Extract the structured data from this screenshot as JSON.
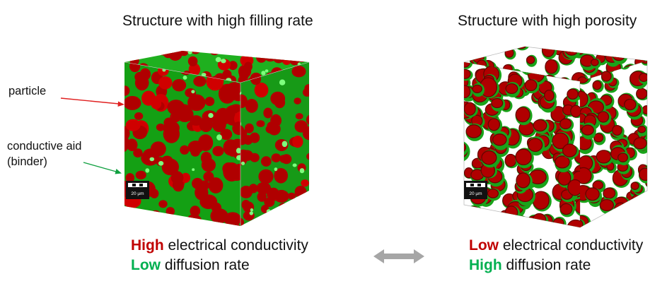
{
  "left_panel": {
    "title": "Structure with high filling rate",
    "scale_bar": "20 µm",
    "labels": {
      "particle": "particle",
      "conductive_aid": [
        "conductive aid",
        "(binder)"
      ]
    },
    "properties": [
      {
        "level": "High",
        "text": " electrical conductivity",
        "level_color": "#c00000"
      },
      {
        "level": "Low",
        "text": " diffusion rate",
        "level_color": "#00b050"
      }
    ]
  },
  "right_panel": {
    "title": "Structure with high porosity",
    "scale_bar": "20 µm",
    "properties": [
      {
        "level": "Low",
        "text": " electrical conductivity",
        "level_color": "#c00000"
      },
      {
        "level": "High",
        "text": " diffusion rate",
        "level_color": "#00b050"
      }
    ]
  },
  "colors": {
    "particle": "#b00000",
    "binder": "#1aa31a",
    "particle_arrow": "#e02020",
    "binder_arrow": "#10a040",
    "double_arrow": "#a6a6a6"
  },
  "icons": {
    "comparison": "double-headed-arrow"
  }
}
